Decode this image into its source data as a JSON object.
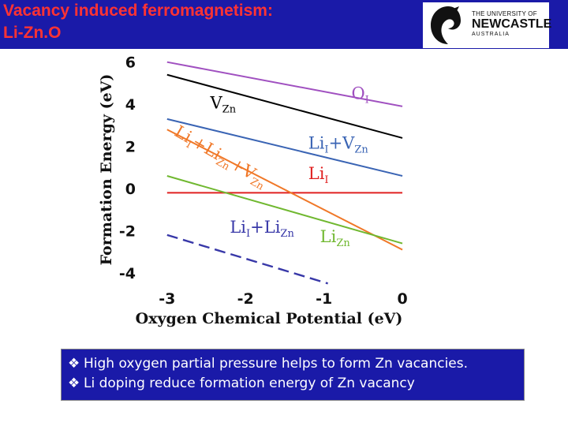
{
  "title": {
    "line1": "Vacancy induced ferromagnetism:",
    "line2": "Li-Zn.O"
  },
  "logo": {
    "line1": "THE UNIVERSITY OF",
    "line2": "NEWCASTLE",
    "line3": "AUSTRALIA",
    "icon": "seahorse-emblem"
  },
  "colors": {
    "title_bar": "#1a1aa8",
    "title_text": "#ff3333",
    "bullet_box": "#1a1aa8"
  },
  "chart_data": {
    "type": "line",
    "xlabel": "Oxygen Chemical Potential (eV)",
    "ylabel": "Formation Energy (eV)",
    "xlim": [
      -3.3,
      0.1
    ],
    "ylim": [
      -4.6,
      6.4
    ],
    "xticks": [
      -3,
      -2,
      -1,
      0
    ],
    "yticks": [
      -4,
      -2,
      0,
      2,
      4,
      6
    ],
    "series": [
      {
        "name": "O_I",
        "color": "#a050c0",
        "dash": "solid",
        "x": [
          -3,
          0
        ],
        "y": [
          6.0,
          3.9
        ]
      },
      {
        "name": "V_Zn",
        "color": "#000000",
        "dash": "solid",
        "x": [
          -3,
          0
        ],
        "y": [
          5.4,
          2.4
        ]
      },
      {
        "name": "Li_I+V_Zn",
        "color": "#3a64b4",
        "dash": "solid",
        "x": [
          -3,
          0
        ],
        "y": [
          3.3,
          0.6
        ]
      },
      {
        "name": "Li_I",
        "color": "#e02020",
        "dash": "solid",
        "x": [
          -3,
          0
        ],
        "y": [
          -0.2,
          -0.2
        ]
      },
      {
        "name": "Li_I+Li_Zn+V_Zn",
        "color": "#f07828",
        "dash": "solid",
        "x": [
          -3,
          0
        ],
        "y": [
          2.8,
          -2.9
        ]
      },
      {
        "name": "Li_Zn",
        "color": "#70b830",
        "dash": "solid",
        "x": [
          -3,
          0
        ],
        "y": [
          0.6,
          -2.6
        ]
      },
      {
        "name": "Li_I+Li_Zn",
        "color": "#3838a8",
        "dash": "dashed",
        "x": [
          -3,
          -0.95
        ],
        "y": [
          -2.2,
          -4.5
        ]
      }
    ],
    "labels": [
      {
        "main": "O",
        "sub": "I",
        "color": "#a050c0",
        "x": -0.65,
        "y": 4.25
      },
      {
        "main": "V",
        "sub": "Zn",
        "color": "#000000",
        "x": -2.45,
        "y": 3.8
      },
      {
        "main": "Li",
        "sub": "I",
        "main2": "+V",
        "sub2": "Zn",
        "color": "#3a64b4",
        "x": -1.2,
        "y": 1.9
      },
      {
        "main": "Li",
        "sub": "I",
        "color": "#e02020",
        "x": -1.2,
        "y": 0.45
      },
      {
        "main": "Li",
        "sub": "Zn",
        "color": "#70b830",
        "x": -1.05,
        "y": -2.55
      },
      {
        "main": "Li",
        "sub": "I",
        "main2": "+Li",
        "sub2": "Zn",
        "color": "#3838a8",
        "x": -2.2,
        "y": -2.1
      }
    ],
    "rotated_label": {
      "parts": [
        [
          "Li",
          "I"
        ],
        [
          "+Li",
          "Zn"
        ],
        [
          "+V",
          "Zn"
        ]
      ],
      "color": "#f07828",
      "x": -2.92,
      "y": 2.55,
      "angle_deg": 30
    }
  },
  "bullets": [
    {
      "marker": "❖",
      "text": "High oxygen partial pressure helps to form Zn vacancies."
    },
    {
      "marker": "❖",
      "text": "Li doping reduce formation energy of Zn vacancy"
    }
  ]
}
